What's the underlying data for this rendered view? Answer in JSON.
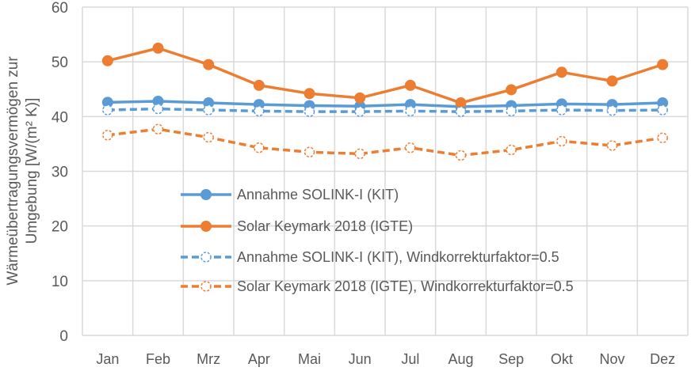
{
  "chart_data": {
    "type": "line",
    "title": "",
    "xlabel": "",
    "ylabel_lines": [
      "Wärmeübertragungsvermögen zur",
      "Umgebung [W/(m² K)]"
    ],
    "categories": [
      "Jan",
      "Feb",
      "Mrz",
      "Apr",
      "Mai",
      "Jun",
      "Jul",
      "Aug",
      "Sep",
      "Okt",
      "Nov",
      "Dez"
    ],
    "ylim": [
      0,
      60
    ],
    "yticks": [
      0,
      10,
      20,
      30,
      40,
      50,
      60
    ],
    "grid": true,
    "legend_position": "center-left inside plot",
    "series": [
      {
        "name": "Annahme SOLINK-I (KIT)",
        "color": "#5B9BD5",
        "style": "solid",
        "marker": "filled-circle",
        "values": [
          42.6,
          42.8,
          42.5,
          42.2,
          42.0,
          41.9,
          42.2,
          41.8,
          42.0,
          42.3,
          42.2,
          42.5
        ]
      },
      {
        "name": "Solar Keymark 2018 (IGTE)",
        "color": "#ED7D31",
        "style": "solid",
        "marker": "filled-circle",
        "values": [
          50.2,
          52.5,
          49.5,
          45.7,
          44.2,
          43.4,
          45.7,
          42.5,
          44.9,
          48.1,
          46.5,
          49.5
        ]
      },
      {
        "name": "Annahme SOLINK-I (KIT), Windkorrekturfaktor=0.5",
        "color": "#5B9BD5",
        "style": "dashed",
        "marker": "open-dashed-circle",
        "values": [
          41.2,
          41.4,
          41.2,
          41.0,
          40.9,
          40.9,
          41.0,
          40.9,
          41.0,
          41.2,
          41.1,
          41.2
        ]
      },
      {
        "name": "Solar Keymark 2018 (IGTE), Windkorrekturfaktor=0.5",
        "color": "#ED7D31",
        "style": "dashed",
        "marker": "open-dashed-circle",
        "values": [
          36.6,
          37.7,
          36.2,
          34.3,
          33.5,
          33.2,
          34.3,
          32.9,
          33.9,
          35.5,
          34.7,
          36.1
        ]
      }
    ]
  }
}
